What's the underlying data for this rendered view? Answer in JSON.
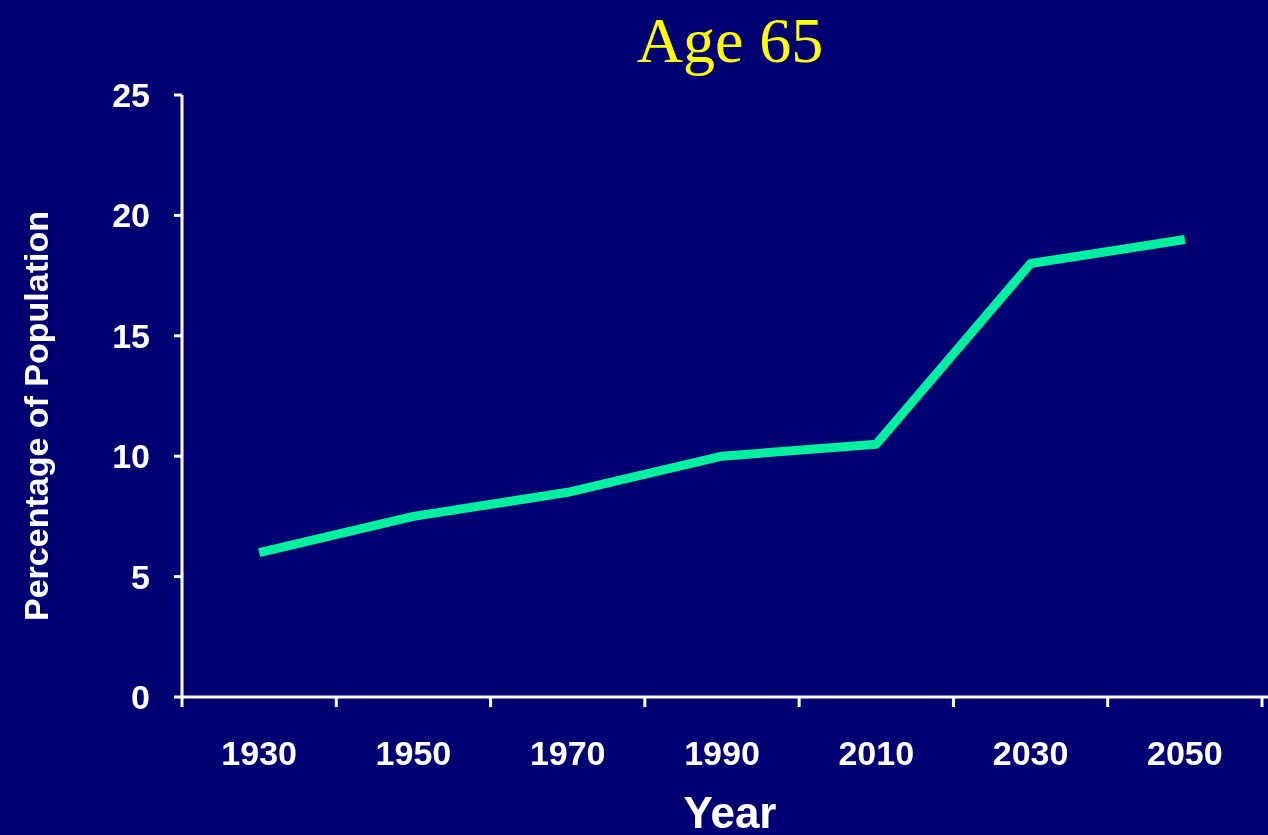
{
  "chart_data": {
    "type": "line",
    "title": "Age 65",
    "xlabel": "Year",
    "ylabel": "Percentage of Population",
    "categories": [
      "1930",
      "1950",
      "1970",
      "1990",
      "2010",
      "2030",
      "2050"
    ],
    "series": [
      {
        "color": "#00f0a0",
        "values": [
          6,
          7.5,
          8.5,
          10,
          10.5,
          18,
          19
        ]
      }
    ],
    "ylim": [
      0,
      25
    ],
    "yticks": [
      0,
      5,
      10,
      15,
      20,
      25
    ],
    "grid": false,
    "line_style": "solid"
  }
}
